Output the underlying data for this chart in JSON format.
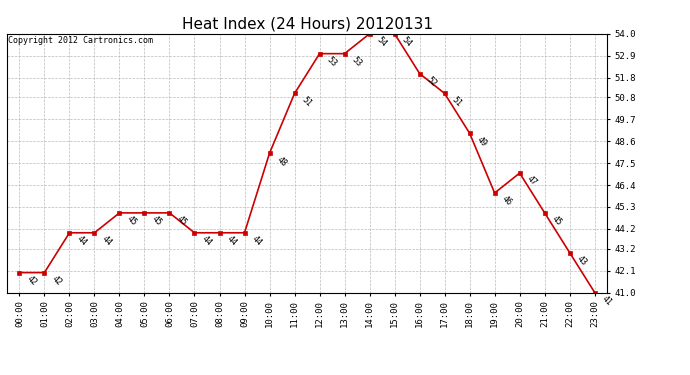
{
  "title": "Heat Index (24 Hours) 20120131",
  "copyright_text": "Copyright 2012 Cartronics.com",
  "hours": [
    0,
    1,
    2,
    3,
    4,
    5,
    6,
    7,
    8,
    9,
    10,
    11,
    12,
    13,
    14,
    15,
    16,
    17,
    18,
    19,
    20,
    21,
    22,
    23
  ],
  "values": [
    42,
    42,
    44,
    44,
    45,
    45,
    45,
    44,
    44,
    44,
    48,
    51,
    53,
    53,
    54,
    54,
    52,
    51,
    49,
    46,
    47,
    45,
    43,
    41
  ],
  "ylim": [
    41.0,
    54.0
  ],
  "yticks": [
    41.0,
    42.1,
    43.2,
    44.2,
    45.3,
    46.4,
    47.5,
    48.6,
    49.7,
    50.8,
    51.8,
    52.9,
    54.0
  ],
  "line_color": "#cc0000",
  "marker_color": "#cc0000",
  "bg_color": "#ffffff",
  "grid_color": "#bbbbbb",
  "title_fontsize": 11,
  "annotation_fontsize": 6,
  "tick_fontsize": 6.5,
  "copyright_fontsize": 6
}
